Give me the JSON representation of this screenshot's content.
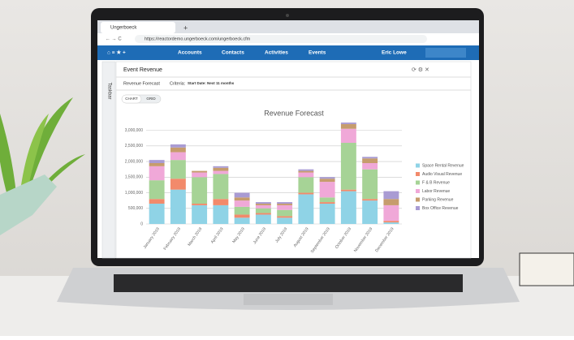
{
  "ui": {
    "tab_title": "Ungerboeck",
    "url": "https://reactordemo.ungerboeck.com/ungerboeck.cfm",
    "nav": [
      "Accounts",
      "Contacts",
      "Activities",
      "Events"
    ],
    "user": "Eric Lowe",
    "sidebar": "Taskbar",
    "panel_title": "Event Revenue",
    "report": "Revenue Forecast",
    "criteria": "Criteria:",
    "criteria_value": "Start Date: Next 11 months",
    "tabs": [
      "CHART",
      "GRID"
    ]
  },
  "chart_data": {
    "type": "bar",
    "stacked": true,
    "title": "Revenue Forecast",
    "categories": [
      "January 2019",
      "February 2019",
      "March 2019",
      "April 2019",
      "May 2019",
      "June 2019",
      "July 2019",
      "August 2019",
      "September 2019",
      "October 2019",
      "November 2019",
      "December 2019"
    ],
    "series": [
      {
        "name": "Space Rental Revenue",
        "color": "#8fd3e6",
        "values": [
          650000,
          1100000,
          600000,
          600000,
          200000,
          300000,
          200000,
          950000,
          650000,
          1050000,
          750000,
          50000
        ]
      },
      {
        "name": "Audio Visual Revenue",
        "color": "#f28a6b",
        "values": [
          150000,
          350000,
          50000,
          200000,
          100000,
          50000,
          50000,
          50000,
          50000,
          50000,
          50000,
          50000
        ]
      },
      {
        "name": "F & B Revenue",
        "color": "#a6d396",
        "values": [
          600000,
          600000,
          850000,
          800000,
          250000,
          150000,
          200000,
          500000,
          150000,
          1500000,
          950000,
          0
        ]
      },
      {
        "name": "Labor Revenue",
        "color": "#f0a8d8",
        "values": [
          450000,
          250000,
          150000,
          100000,
          200000,
          100000,
          150000,
          150000,
          500000,
          450000,
          200000,
          500000
        ]
      },
      {
        "name": "Parking Revenue",
        "color": "#c69c6d",
        "values": [
          100000,
          150000,
          50000,
          100000,
          100000,
          50000,
          50000,
          50000,
          100000,
          150000,
          150000,
          200000
        ]
      },
      {
        "name": "Box Office Revenue",
        "color": "#a99bd3",
        "values": [
          100000,
          100000,
          0,
          50000,
          150000,
          50000,
          50000,
          50000,
          50000,
          50000,
          50000,
          250000
        ]
      }
    ],
    "ylim": [
      0,
      3250000
    ],
    "yticks": [
      0,
      {
        "value": 500000,
        "label": "500,000"
      },
      {
        "value": 1000000,
        "label": "1,000,000"
      },
      {
        "value": 1500000,
        "label": "1,500,000"
      },
      {
        "value": 2000000,
        "label": "2,000,000"
      },
      {
        "value": 2500000,
        "label": "2,500,000"
      },
      {
        "value": 3000000,
        "label": "3,000,000"
      }
    ],
    "grid": true,
    "legend": "right"
  }
}
